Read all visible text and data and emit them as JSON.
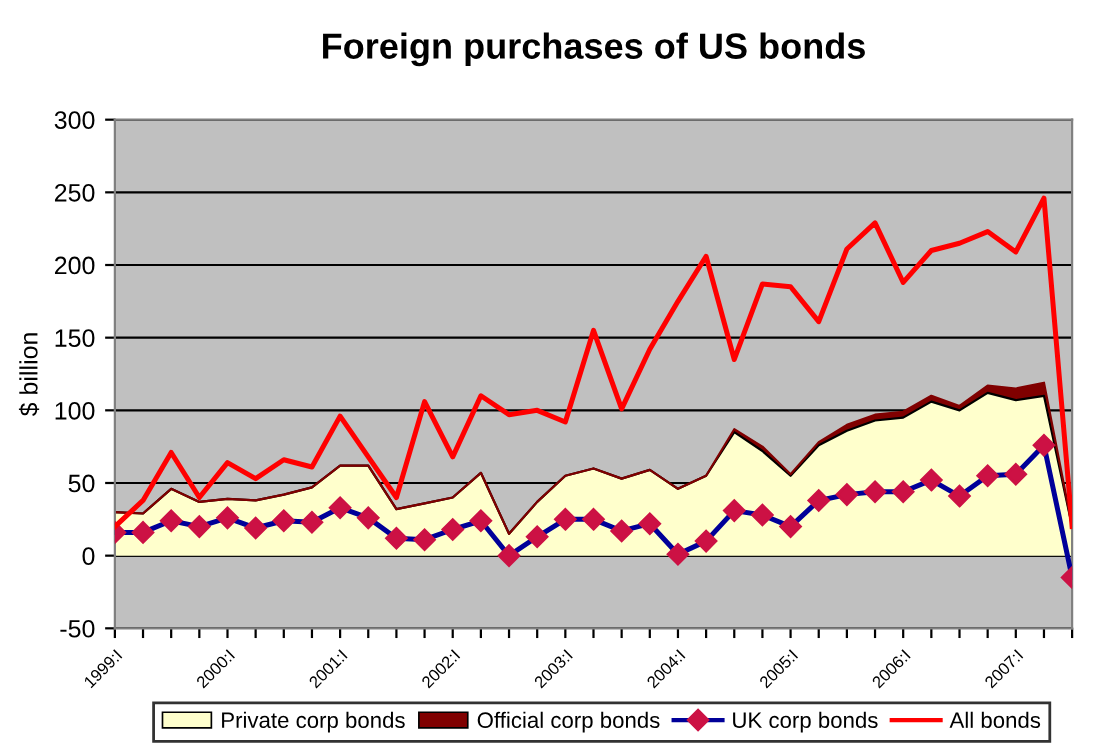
{
  "chart_data": {
    "type": "area",
    "title": "Foreign purchases of US bonds",
    "ylabel": "$ billion",
    "categories": [
      "1999:I",
      null,
      null,
      null,
      "2000:I",
      null,
      null,
      null,
      "2001:I",
      null,
      null,
      null,
      "2002:I",
      null,
      null,
      null,
      "2003:I",
      null,
      null,
      null,
      "2004:I",
      null,
      null,
      null,
      "2005:I",
      null,
      null,
      null,
      "2006:I",
      null,
      null,
      null,
      "2007:I",
      null,
      null
    ],
    "stacked": true,
    "ylim": [
      -50,
      300
    ],
    "yticks": [
      -50,
      0,
      50,
      100,
      150,
      200,
      250,
      300
    ],
    "grid": "y",
    "legend": "bottom",
    "series": [
      {
        "name": "Private corp bonds",
        "color": "#ffffcc",
        "values": [
          30,
          29,
          46,
          37,
          39,
          38,
          42,
          47,
          62,
          62,
          32,
          36,
          40,
          57,
          15,
          37,
          55,
          60,
          53,
          59,
          46,
          55,
          85,
          72,
          55,
          76,
          86,
          93,
          95,
          106,
          100,
          112,
          107,
          110,
          20
        ]
      },
      {
        "name": "Official corp bonds",
        "color": "#800000",
        "values": [
          0,
          0,
          0,
          0,
          0,
          0,
          0,
          0,
          0,
          0,
          0,
          0,
          0,
          0,
          0,
          0,
          0,
          0,
          0,
          0,
          0,
          0,
          2,
          3,
          1,
          2,
          4,
          4,
          4,
          4,
          3,
          5,
          8,
          9,
          0
        ]
      },
      {
        "name": "UK corp bonds",
        "type": "line",
        "color": "#000099",
        "marker": "diamond",
        "values": [
          16,
          16,
          24,
          20,
          26,
          19,
          24,
          23,
          33,
          26,
          12,
          11,
          18,
          24,
          0,
          13,
          25,
          25,
          17,
          22,
          1,
          10,
          31,
          28,
          20,
          38,
          42,
          44,
          44,
          52,
          41,
          55,
          56,
          76,
          -15
        ]
      },
      {
        "name": "All bonds",
        "type": "line",
        "color": "#ff0000",
        "values": [
          20,
          38,
          71,
          40,
          64,
          53,
          66,
          61,
          96,
          68,
          40,
          106,
          68,
          110,
          97,
          100,
          92,
          155,
          101,
          142,
          175,
          206,
          135,
          187,
          185,
          161,
          211,
          229,
          188,
          210,
          215,
          223,
          209,
          246,
          20
        ]
      }
    ]
  }
}
